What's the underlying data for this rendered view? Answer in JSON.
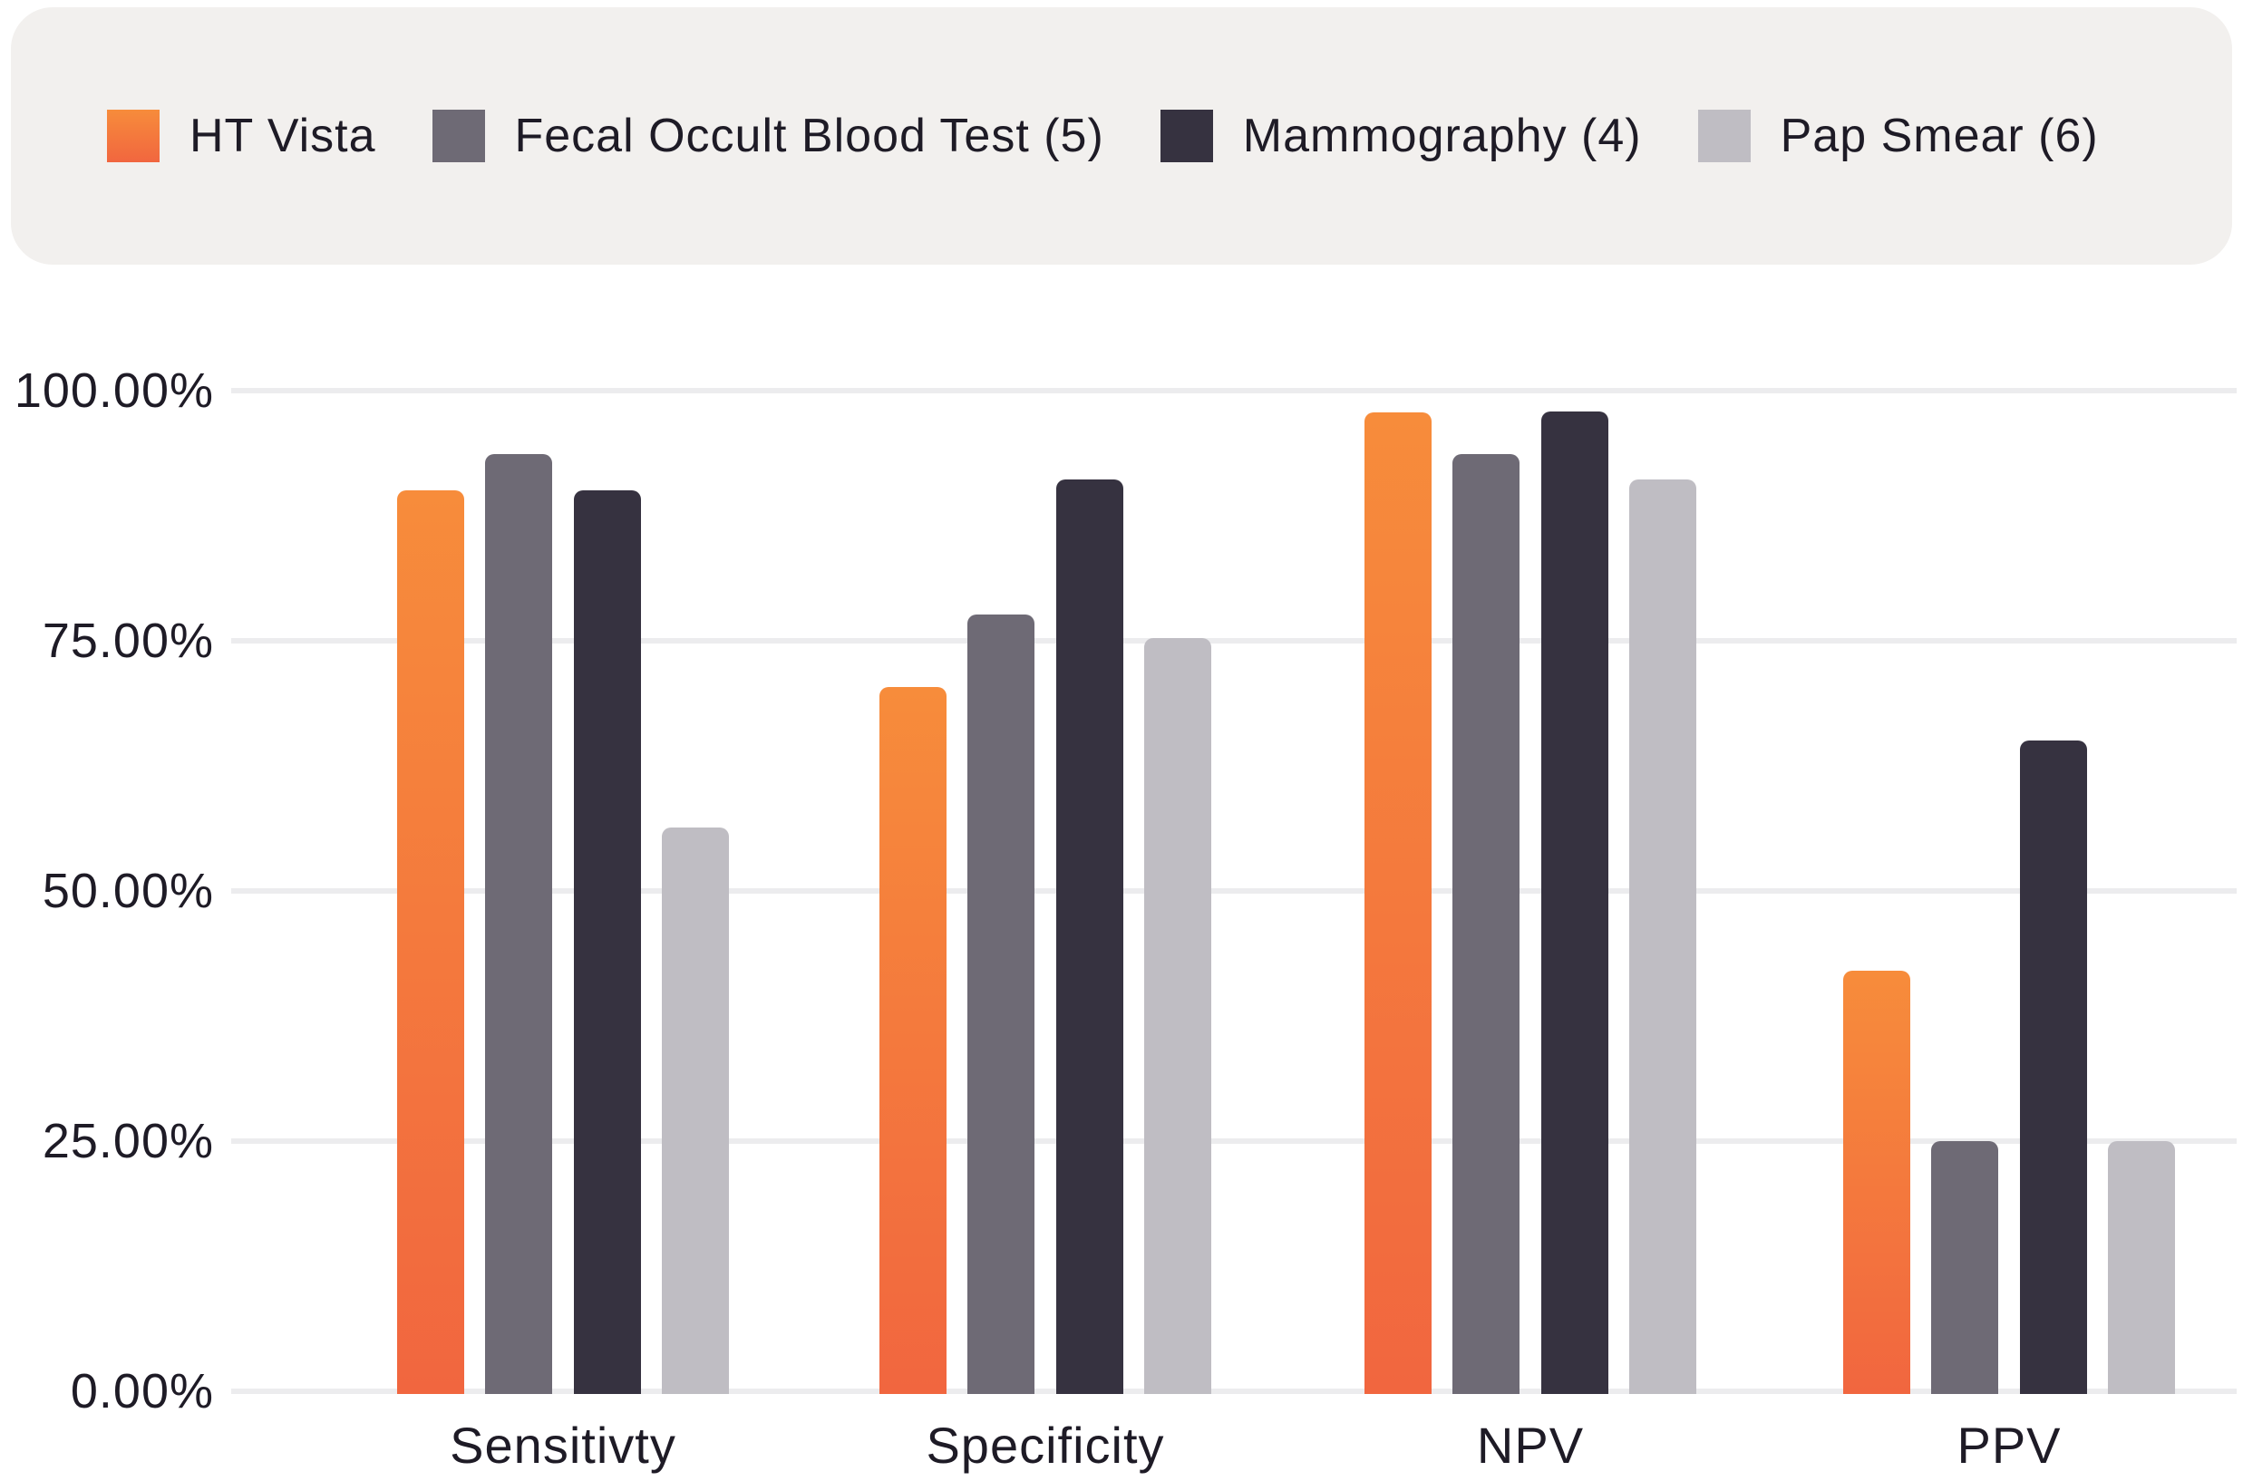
{
  "legend": {
    "items": [
      {
        "label": "HT Vista",
        "color_top": "#F78C3B",
        "color_bottom": "#F1663F",
        "color": "#F47A3D"
      },
      {
        "label": "Fecal Occult Blood Test (5)",
        "color": "#6E6A75"
      },
      {
        "label": "Mammography (4)",
        "color": "#363240"
      },
      {
        "label": "Pap Smear (6)",
        "color": "#BFBDC3"
      }
    ]
  },
  "chart_data": {
    "type": "bar",
    "categories": [
      "Sensitivty",
      "Specificity",
      "NPV",
      "PPV"
    ],
    "series": [
      {
        "name": "HT Vista",
        "values": [
          90.0,
          70.4,
          97.8,
          42.0
        ]
      },
      {
        "name": "Fecal Occult Blood Test (5)",
        "values": [
          93.7,
          77.6,
          93.7,
          25.0
        ]
      },
      {
        "name": "Mammography (4)",
        "values": [
          90.0,
          91.1,
          97.9,
          65.0
        ]
      },
      {
        "name": "Pap Smear (6)",
        "values": [
          56.3,
          75.3,
          91.1,
          25.0
        ]
      }
    ],
    "title": "",
    "xlabel": "",
    "ylabel": "",
    "ylim": [
      0,
      100
    ],
    "yticks": [
      "100.00%",
      "75.00%",
      "50.00%",
      "25.00%",
      "0.00%"
    ],
    "grid": true,
    "legend_position": "top"
  },
  "colors": {
    "page_background": "#FFFFFF",
    "legend_background": "#F2F0EE",
    "gridline": "#ECECEE",
    "text": "#1E1B26",
    "ht_vista_gradient_top": "#F78C3B",
    "ht_vista_gradient_bottom": "#F1663F",
    "fobt": "#6E6A75",
    "mammography": "#363240",
    "pap_smear": "#BFBDC3"
  }
}
